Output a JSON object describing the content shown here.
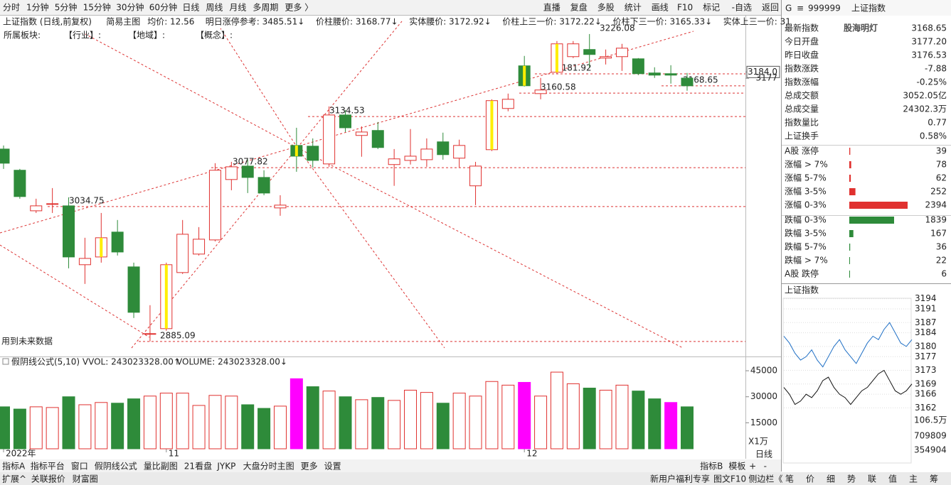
{
  "toolbar": {
    "left": [
      "分时",
      "1分钟",
      "5分钟",
      "15分钟",
      "30分钟",
      "60分钟",
      "日线",
      "周线",
      "月线",
      "多周期",
      "更多 〉"
    ],
    "active": 6,
    "right": [
      "直播",
      "复盘",
      "多股",
      "统计",
      "画线",
      "F10",
      "标记",
      "-自选",
      "返回"
    ]
  },
  "info_bar": {
    "items": [
      {
        "text": "上证指数 (日线,前复权)",
        "color": "#222222"
      },
      {
        "text": "简易主图",
        "color": "#222222"
      },
      {
        "text": "均价: 12.56",
        "color": "#d61f1f"
      },
      {
        "text": "明日涨停参考: 3485.51↓",
        "color": "#d61f1f"
      },
      {
        "text": "价柱腰价: 3168.77↓",
        "color": "#d61f1f"
      },
      {
        "text": "实体腰价: 3172.92↓",
        "color": "#d61f1f"
      },
      {
        "text": "价柱上三一价: 3172.22↓",
        "color": "#d61f1f"
      },
      {
        "text": "价柱下三一价: 3165.33↓",
        "color": "#d61f1f"
      },
      {
        "text": "实体上三一价: 31",
        "color": "#d61f1f"
      }
    ],
    "sectors": [
      "所属板块:",
      "【行业】:",
      "【地域】:",
      "【概念】:"
    ]
  },
  "chart_note": "用到未来数据",
  "chart_data": {
    "type": "candlestick",
    "categories": [
      "2022年",
      null,
      null,
      null,
      null,
      null,
      null,
      null,
      null,
      null,
      "11",
      null,
      null,
      null,
      null,
      null,
      null,
      null,
      null,
      null,
      null,
      null,
      null,
      null,
      null,
      null,
      null,
      null,
      null,
      null,
      null,
      null,
      "12",
      null,
      null,
      null,
      null,
      null,
      null,
      null,
      null,
      null,
      null
    ],
    "open": [
      3098.5,
      3075,
      3030,
      3037.4,
      3035.5,
      2970.2,
      2978.8,
      3006.4,
      2967.8,
      2893.4,
      2899.3,
      2961.5,
      2982,
      2997.7,
      3064.7,
      3079.6,
      3067,
      3033.2,
      3102.5,
      3101.7,
      3082,
      3136.3,
      3113.6,
      3119.1,
      3081.3,
      3085.9,
      3086.7,
      3106.5,
      3088.4,
      3057.7,
      3097.8,
      3143.5,
      3190.8,
      3160,
      3183.7,
      3201,
      3208.9,
      3199.4,
      3201,
      3198.6,
      3182.9,
      3182.1,
      3177.2
    ],
    "high": [
      3102.5,
      3076.5,
      3043.4,
      3055.2,
      3045,
      3000.1,
      3027.6,
      3019.8,
      2972.5,
      2925.3,
      2972.5,
      3019.8,
      3011.9,
      3082.8,
      3084.3,
      3086.7,
      3075,
      3047.3,
      3122.1,
      3110.3,
      3145.8,
      3141.8,
      3123.7,
      3128.5,
      3098.5,
      3120.7,
      3110.3,
      3116.7,
      3108.9,
      3084.3,
      3153.7,
      3160,
      3201.8,
      3177.4,
      3218.3,
      3218.3,
      3226.08,
      3208.9,
      3215.2,
      3199.4,
      3189.2,
      3191.5,
      3182.9
    ],
    "low": [
      3076.5,
      3043.4,
      3027.6,
      3027.6,
      2966.2,
      2948.9,
      2972.5,
      2980.4,
      2911.1,
      2885.09,
      2896.9,
      2959.9,
      2980.4,
      2996.1,
      3052.8,
      3049.7,
      3047.3,
      3024.5,
      3073.3,
      3078,
      3078.8,
      3117.4,
      3090,
      3098.5,
      3057.7,
      3081.3,
      3078.8,
      3086.7,
      3078,
      3036.3,
      3096.3,
      3140.4,
      3167.9,
      3153.7,
      3182.1,
      3199.4,
      3189.2,
      3192.3,
      3185.2,
      3180.5,
      3177.4,
      3171.1,
      3163.2
    ],
    "close": [
      3082.8,
      3045.8,
      3035.5,
      3037.9,
      2978.8,
      2977.2,
      3000.1,
      2984.3,
      2917.4,
      2893.8,
      2970.2,
      3004,
      2998.5,
      3075,
      3078.8,
      3067,
      3049.7,
      3036.3,
      3090.6,
      3085.9,
      3136.3,
      3122.1,
      3117.4,
      3100.2,
      3087.6,
      3090.6,
      3098.5,
      3092.3,
      3102.5,
      3079.6,
      3152.2,
      3153.7,
      3168.7,
      3164,
      3215.2,
      3215.2,
      3203.4,
      3201,
      3210.4,
      3182.1,
      3180.5,
      3180.5,
      3168.65
    ],
    "highlight": [
      false,
      false,
      false,
      false,
      false,
      false,
      true,
      false,
      false,
      false,
      true,
      false,
      false,
      false,
      false,
      false,
      false,
      false,
      true,
      false,
      false,
      false,
      false,
      false,
      false,
      false,
      false,
      false,
      false,
      false,
      true,
      false,
      true,
      false,
      true,
      false,
      false,
      false,
      false,
      false,
      false,
      false,
      false
    ],
    "ylim": [
      2870,
      3246.5
    ],
    "yticks": [
      {
        "value": 3184.0,
        "label": "3184.0"
      },
      3177
    ],
    "levels": [
      3226.08,
      3181.92,
      3160.58,
      3168.65,
      3134.53,
      3077.82,
      3034.75,
      2885.09
    ],
    "up_color": "#e0312f",
    "down_color": "#2e8b3a",
    "highlight_color": "#ffee00",
    "volume_title": "假阴线公式(5,10) VVOL: 243023328.00↑",
    "volume_title2": "VOLUME: 243023328.00↓",
    "volume": [
      24200,
      22900,
      24200,
      23800,
      30000,
      25400,
      26700,
      26300,
      28800,
      30400,
      32100,
      32100,
      25000,
      30800,
      30400,
      25400,
      23300,
      24600,
      40400,
      35800,
      33300,
      30000,
      28300,
      29600,
      27900,
      33800,
      32500,
      26300,
      32100,
      30400,
      38800,
      36700,
      38300,
      30400,
      44200,
      37500,
      35000,
      33800,
      36700,
      33300,
      28800,
      26700,
      24200
    ],
    "vol_highlight": [
      false,
      false,
      false,
      false,
      false,
      false,
      false,
      false,
      false,
      false,
      false,
      false,
      false,
      false,
      false,
      false,
      false,
      false,
      true,
      false,
      false,
      false,
      false,
      false,
      false,
      false,
      false,
      false,
      false,
      false,
      false,
      false,
      true,
      false,
      false,
      false,
      false,
      false,
      false,
      false,
      false,
      true,
      false
    ],
    "vol_highlight_color": "#ff00ff",
    "vlim": [
      0,
      52000
    ],
    "vticks": [
      45000,
      30000,
      15000
    ],
    "vol_unit": "X1万",
    "period_label": "日线"
  },
  "index_panel": {
    "badge": "G",
    "menu": "≡",
    "code": "999999",
    "name": "上证指数",
    "watermark": "股海明灯",
    "rows": [
      {
        "label": "最新指数",
        "value": "3168.65",
        "color": "#2e8b3a"
      },
      {
        "label": "今日开盘",
        "value": "3177.20",
        "color": "#e0312f"
      },
      {
        "label": "昨日收盘",
        "value": "3176.53",
        "color": "#222222"
      },
      {
        "label": "指数涨跌",
        "value": "-7.88",
        "color": "#2e8b3a"
      },
      {
        "label": "指数涨幅",
        "value": "-0.25%",
        "color": "#2e8b3a"
      },
      {
        "label": "总成交额",
        "value": "3052.05亿",
        "color": "#222222"
      },
      {
        "label": "总成交量",
        "value": "24302.3万",
        "color": "#222222"
      },
      {
        "label": "指数量比",
        "value": "0.77",
        "color": "#2e8b3a"
      },
      {
        "label": "上证换手",
        "value": "0.58%",
        "color": "#222222"
      }
    ],
    "breadth": [
      {
        "label": "A股 涨停",
        "value": 39,
        "color": "#e0312f"
      },
      {
        "label": "涨幅 > 7%",
        "value": 78,
        "color": "#e0312f"
      },
      {
        "label": "涨幅 5-7%",
        "value": 62,
        "color": "#e0312f"
      },
      {
        "label": "涨幅 3-5%",
        "value": 252,
        "color": "#e0312f"
      },
      {
        "label": "涨幅 0-3%",
        "value": 2394,
        "color": "#e0312f"
      },
      {
        "label": "跌幅 0-3%",
        "value": 1839,
        "color": "#2e8b3a"
      },
      {
        "label": "跌幅 3-5%",
        "value": 167,
        "color": "#2e8b3a"
      },
      {
        "label": "跌幅 5-7%",
        "value": 36,
        "color": "#2e8b3a"
      },
      {
        "label": "跌幅 > 7%",
        "value": 22,
        "color": "#2e8b3a"
      },
      {
        "label": "A股 跌停",
        "value": 6,
        "color": "#2e8b3a"
      }
    ]
  },
  "mini_chart": {
    "title": "上证指数",
    "price": [
      3183,
      3181,
      3178,
      3176,
      3177,
      3179,
      3176,
      3174,
      3177,
      3180,
      3182,
      3179,
      3177,
      3175,
      3178,
      3181,
      3183,
      3182,
      3185,
      3187,
      3184,
      3181,
      3180,
      3182
    ],
    "average": [
      3168,
      3166,
      3163,
      3164,
      3166,
      3165,
      3167,
      3170,
      3171,
      3168,
      3166,
      3165,
      3163,
      3165,
      3167,
      3168,
      3170,
      3172,
      3173,
      3170,
      3167,
      3166,
      3167,
      3169
    ],
    "price_color": "#1f6fc5",
    "average_color": "#111111",
    "ylim": [
      3160,
      3196
    ],
    "yticks": [
      3194,
      3191,
      3187,
      3184,
      3180,
      3177,
      3173,
      3169,
      3166,
      3162
    ],
    "vol_labels": [
      "106.5万",
      "709809",
      "354904"
    ]
  },
  "bottom_tabs": {
    "left": [
      "指标A",
      "指标平台",
      "窗口",
      "假阴线公式",
      "量比副图",
      "21看盘",
      "JYKP",
      "大盘分时主图",
      "更多",
      "设置"
    ],
    "active": 3,
    "right": [
      "指标B",
      "模板",
      "+",
      "-"
    ]
  },
  "status_bar": {
    "left": [
      "扩展^",
      "关联报价",
      "财富圈"
    ],
    "middle": [
      "新用户福利专享",
      "图文F10",
      "侧边栏《"
    ],
    "right": [
      "笔",
      "价",
      "细",
      "势",
      "联",
      "值",
      "主",
      "筹"
    ],
    "active": 3
  }
}
